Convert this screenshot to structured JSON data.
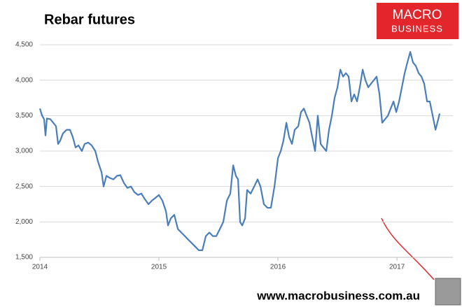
{
  "chart_data": {
    "type": "line",
    "title": "Rebar futures",
    "logo": [
      "MACRO",
      "BUSINESS"
    ],
    "footer": "www.macrobusiness.com.au",
    "color": "#4a7ebb",
    "grid": true,
    "xlim": [
      2014,
      2017.47
    ],
    "xticks": [
      2014,
      2015,
      2016,
      2017
    ],
    "ylim": [
      1500,
      4500
    ],
    "yticks": [
      {
        "value": 1500,
        "label": "1,500"
      },
      {
        "value": 2000,
        "label": "2,000"
      },
      {
        "value": 2500,
        "label": "2,500"
      },
      {
        "value": 3000,
        "label": "3,000"
      },
      {
        "value": 3500,
        "label": "3,500"
      },
      {
        "value": 4000,
        "label": "4,000"
      },
      {
        "value": 4500,
        "label": "4,500"
      }
    ],
    "x": [
      2014.0,
      2014.018,
      2014.035,
      2014.047,
      2014.059,
      2014.088,
      2014.112,
      2014.135,
      2014.153,
      2014.171,
      2014.194,
      2014.224,
      2014.253,
      2014.276,
      2014.3,
      2014.324,
      2014.353,
      2014.376,
      2014.406,
      2014.435,
      2014.465,
      2014.488,
      2014.518,
      2014.535,
      2014.559,
      2014.588,
      2014.618,
      2014.647,
      2014.676,
      2014.706,
      2014.735,
      2014.765,
      2014.794,
      2014.824,
      2014.853,
      2014.882,
      2014.912,
      2014.941,
      2014.971,
      2015.0,
      2015.029,
      2015.059,
      2015.076,
      2015.1,
      2015.129,
      2015.159,
      2015.188,
      2015.218,
      2015.247,
      2015.276,
      2015.306,
      2015.335,
      2015.365,
      2015.394,
      2015.424,
      2015.453,
      2015.482,
      2015.512,
      2015.541,
      2015.571,
      2015.6,
      2015.624,
      2015.647,
      2015.665,
      2015.682,
      2015.7,
      2015.724,
      2015.741,
      2015.771,
      2015.8,
      2015.829,
      2015.853,
      2015.882,
      2015.912,
      2015.941,
      2015.971,
      2016.0,
      2016.024,
      2016.047,
      2016.071,
      2016.094,
      2016.118,
      2016.141,
      2016.171,
      2016.194,
      2016.218,
      2016.241,
      2016.265,
      2016.288,
      2016.312,
      2016.335,
      2016.359,
      2016.382,
      2016.406,
      2016.429,
      2016.453,
      2016.476,
      2016.5,
      2016.524,
      2016.547,
      2016.571,
      2016.594,
      2016.618,
      2016.641,
      2016.665,
      2016.688,
      2016.712,
      2016.735,
      2016.759,
      2016.782,
      2016.806,
      2016.829,
      2016.853,
      2016.876,
      2016.9,
      2016.924,
      2016.947,
      2016.971,
      2016.994,
      2017.018,
      2017.041,
      2017.065,
      2017.088,
      2017.112,
      2017.135,
      2017.159,
      2017.182,
      2017.206,
      2017.229,
      2017.253,
      2017.276,
      2017.3,
      2017.324,
      2017.347,
      2017.359
    ],
    "values": [
      3600,
      3500,
      3450,
      3220,
      3460,
      3450,
      3400,
      3350,
      3100,
      3150,
      3250,
      3300,
      3300,
      3200,
      3050,
      3080,
      3000,
      3100,
      3120,
      3080,
      3000,
      2850,
      2700,
      2500,
      2650,
      2620,
      2600,
      2650,
      2660,
      2550,
      2480,
      2500,
      2420,
      2380,
      2400,
      2320,
      2250,
      2300,
      2340,
      2380,
      2300,
      2150,
      1950,
      2050,
      2100,
      1900,
      1850,
      1800,
      1750,
      1700,
      1650,
      1600,
      1600,
      1800,
      1850,
      1800,
      1800,
      1900,
      2000,
      2300,
      2400,
      2800,
      2650,
      2600,
      2000,
      1950,
      2050,
      2450,
      2400,
      2500,
      2600,
      2500,
      2250,
      2200,
      2200,
      2500,
      2900,
      3000,
      3150,
      3400,
      3200,
      3100,
      3300,
      3350,
      3550,
      3600,
      3500,
      3400,
      3200,
      3000,
      3500,
      3100,
      3050,
      3000,
      3300,
      3500,
      3750,
      3900,
      4150,
      4050,
      4100,
      4050,
      3700,
      3800,
      3700,
      3900,
      4150,
      4000,
      3900,
      3950,
      4000,
      4050,
      3800,
      3400,
      3450,
      3500,
      3600,
      3700,
      3550,
      3700,
      3900,
      4100,
      4250,
      4400,
      4250,
      4200,
      4100,
      4050,
      3950,
      3700,
      3700,
      3500,
      3300,
      3450,
      3530
    ]
  }
}
